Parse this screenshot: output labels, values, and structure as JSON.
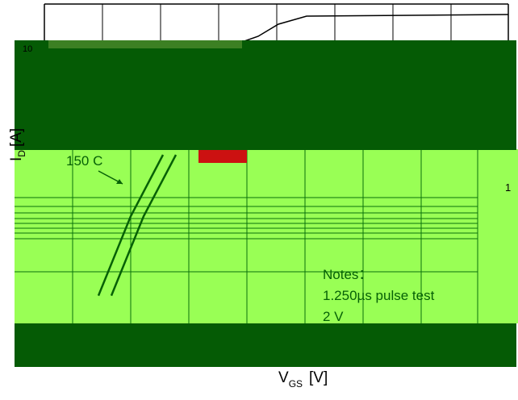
{
  "chart_data": {
    "type": "line",
    "title": "",
    "xlabel": "",
    "ylabel": "",
    "axis_labels": {
      "x": {
        "main": "V",
        "sub": "GS",
        "unit": "[V]"
      },
      "y": {
        "main": "I",
        "sub": "D",
        "unit": "[A]"
      }
    },
    "y_tick_labels": [
      "10",
      "1"
    ],
    "series": [
      {
        "name": "",
        "points": [
          [
            2.6,
            0.03
          ],
          [
            3.6,
            0.7
          ],
          [
            4.6,
            8
          ]
        ]
      },
      {
        "name": "",
        "points": [
          [
            3.0,
            0.03
          ],
          [
            4.0,
            0.7
          ],
          [
            5.0,
            8
          ]
        ]
      }
    ],
    "annotations": {
      "temperature_label": "150 C",
      "notes": [
        "Notes：",
        "1.250µs pulse test",
        "2 V"
      ]
    },
    "grid": true,
    "colors": {
      "plot_background": "#99ff55",
      "mask_band": "#055b05",
      "curve": "#066106",
      "grid": "#0b700b",
      "highlight": "#cc1111"
    }
  }
}
